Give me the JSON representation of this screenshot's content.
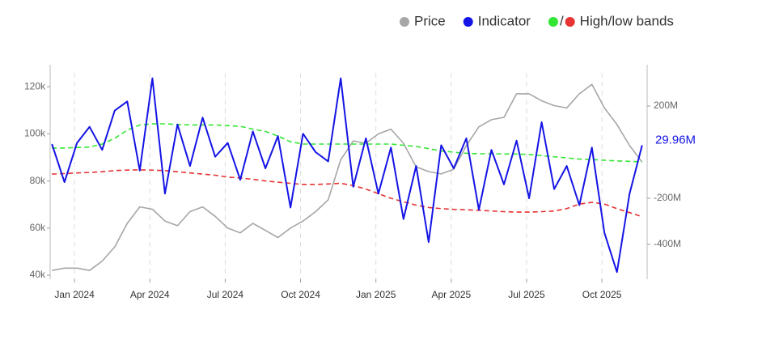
{
  "chart_data": {
    "type": "line",
    "legend_separator": "/",
    "x": [
      -0.9,
      -0.4,
      0.1,
      0.6,
      1.1,
      1.6,
      2.1,
      2.6,
      3.1,
      3.6,
      4.1,
      4.6,
      5.1,
      5.6,
      6.1,
      6.6,
      7.1,
      7.6,
      8.1,
      8.6,
      9.1,
      9.6,
      10.1,
      10.6,
      11.1,
      11.6,
      12.1,
      12.6,
      13.1,
      13.6,
      14.1,
      14.6,
      15.1,
      15.6,
      16.1,
      16.6,
      17.1,
      17.6,
      18.1,
      18.6,
      19.1,
      19.6,
      20.1,
      20.6,
      21.1,
      21.6,
      22.1,
      22.6
    ],
    "xlim": [
      -0.97,
      22.8
    ],
    "xticks": [
      {
        "value": 0,
        "label": "Jan 2024"
      },
      {
        "value": 3,
        "label": "Apr 2024"
      },
      {
        "value": 6,
        "label": "Jul 2024"
      },
      {
        "value": 9,
        "label": "Oct 2024"
      },
      {
        "value": 12,
        "label": "Jan 2025"
      },
      {
        "value": 15,
        "label": "Apr 2025"
      },
      {
        "value": 18,
        "label": "Jul 2025"
      },
      {
        "value": 21,
        "label": "Oct 2025"
      }
    ],
    "ylim": [
      38300,
      125900
    ],
    "yticks": [
      {
        "value": 40000,
        "label": "40k"
      },
      {
        "value": 60000,
        "label": "60k"
      },
      {
        "value": 80000,
        "label": "80k"
      },
      {
        "value": 100000,
        "label": "100k"
      },
      {
        "value": 120000,
        "label": "120k"
      }
    ],
    "y2lim": [
      -551,
      344
    ],
    "y2ticks": [
      {
        "value": -400,
        "label": "-400M"
      },
      {
        "value": -200,
        "label": "-200M"
      },
      {
        "value": 200,
        "label": "200M"
      }
    ],
    "grid": true,
    "series": [
      {
        "name": "Price",
        "color": "#a6a6a6",
        "values": [
          42000,
          43000,
          43000,
          42000,
          46000,
          52000,
          62000,
          69000,
          68000,
          63000,
          61000,
          67000,
          69000,
          65000,
          60000,
          58000,
          62000,
          59000,
          56000,
          60000,
          63000,
          67000,
          72000,
          89000,
          97000,
          96000,
          100000,
          102000,
          96000,
          86000,
          84000,
          83000,
          85000,
          95000,
          103000,
          106000,
          107000,
          117000,
          117000,
          114000,
          112000,
          111000,
          117000,
          121000,
          111000,
          104000,
          95000,
          88000
        ]
      },
      {
        "name": "Indicator",
        "color": "#1414e6",
        "axis": "y2",
        "annotation": "29.96M",
        "values": [
          35,
          -130,
          40,
          110,
          10,
          180,
          220,
          -80,
          320,
          -180,
          120,
          -60,
          150,
          -20,
          40,
          -120,
          90,
          -70,
          70,
          -240,
          80,
          0,
          -40,
          320,
          -150,
          60,
          -180,
          20,
          -290,
          -60,
          -390,
          30,
          -70,
          60,
          -250,
          10,
          -140,
          50,
          -200,
          130,
          -160,
          -60,
          -230,
          20,
          -350,
          -520,
          -180,
          29.96
        ]
      }
    ],
    "bands": {
      "name": "High/low bands",
      "axis": "y2",
      "high": {
        "color": "#33e633",
        "values": [
          18,
          18,
          20,
          22,
          35,
          60,
          95,
          118,
          123,
          123,
          120,
          118,
          118,
          118,
          115,
          112,
          100,
          90,
          70,
          45,
          35,
          35,
          35,
          35,
          35,
          35,
          35,
          35,
          30,
          25,
          15,
          5,
          0,
          -5,
          -7,
          -7,
          -8,
          -8,
          -10,
          -15,
          -20,
          -25,
          -30,
          -32,
          -35,
          -38,
          -40,
          -42
        ]
      },
      "low": {
        "color": "#e63333",
        "values": [
          -95,
          -93,
          -90,
          -88,
          -85,
          -80,
          -78,
          -77,
          -78,
          -80,
          -85,
          -90,
          -95,
          -100,
          -108,
          -112,
          -118,
          -125,
          -130,
          -135,
          -140,
          -140,
          -138,
          -135,
          -145,
          -160,
          -180,
          -200,
          -215,
          -230,
          -240,
          -245,
          -248,
          -250,
          -252,
          -255,
          -258,
          -260,
          -260,
          -258,
          -255,
          -245,
          -225,
          -218,
          -225,
          -245,
          -262,
          -280
        ]
      }
    }
  }
}
